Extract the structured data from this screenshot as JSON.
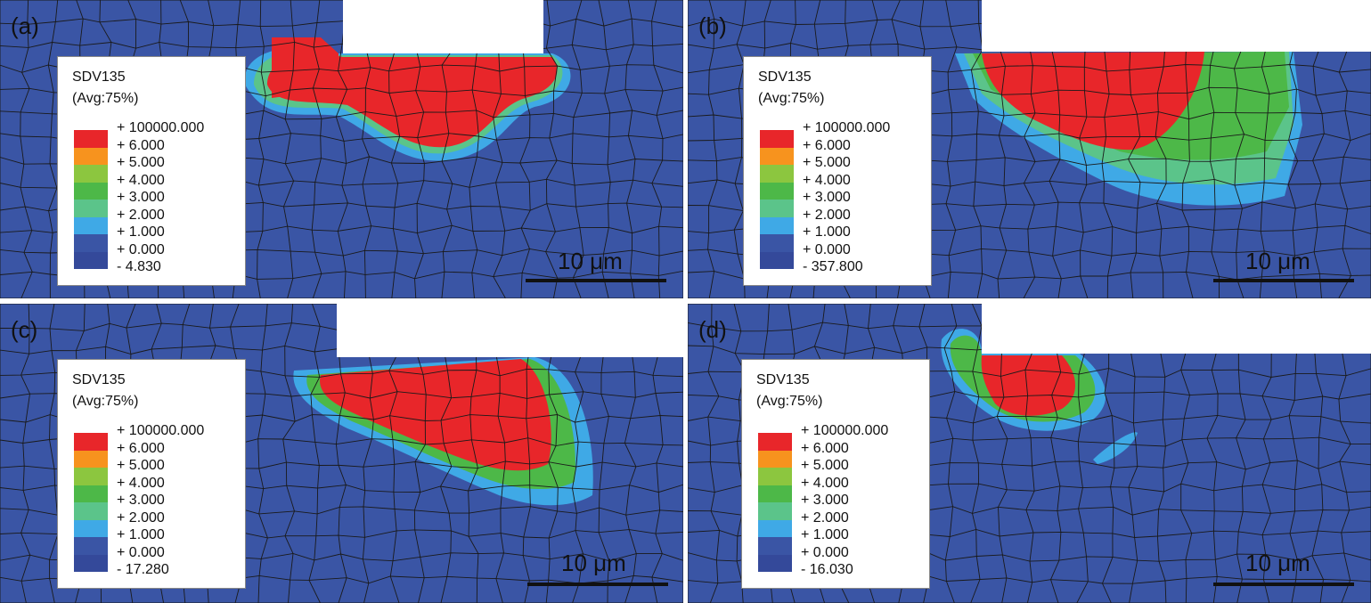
{
  "colors": {
    "mesh_blue": "#3a55a5",
    "red": "#e8262a",
    "orange": "#f7931e",
    "yellow_green": "#8cc63f",
    "green": "#4db848",
    "teal_green": "#5bc48a",
    "light_blue": "#3fa9e6",
    "blue": "#3a55a5",
    "dark_blue": "#34499a",
    "mesh_line": "#1a1a1a"
  },
  "legend_colors": [
    "#e8262a",
    "#f7931e",
    "#8cc63f",
    "#4db848",
    "#5bc48a",
    "#3fa9e6",
    "#3a55a5",
    "#34499a"
  ],
  "panels": [
    {
      "label": "(a)",
      "legend": {
        "variable": "SDV135",
        "averaging": "(Avg:75%)",
        "ticks": [
          "+ 100000.000",
          "+ 6.000",
          "+ 5.000",
          "+ 4.000",
          "+ 3.000",
          "+ 2.000",
          "+ 1.000",
          "+ 0.000",
          "- 4.830"
        ]
      },
      "scale_bar": "10 μm"
    },
    {
      "label": "(b)",
      "legend": {
        "variable": "SDV135",
        "averaging": "(Avg:75%)",
        "ticks": [
          "+ 100000.000",
          "+ 6.000",
          "+ 5.000",
          "+ 4.000",
          "+ 3.000",
          "+ 2.000",
          "+ 1.000",
          "+ 0.000",
          "- 357.800"
        ]
      },
      "scale_bar": "10 μm"
    },
    {
      "label": "(c)",
      "legend": {
        "variable": "SDV135",
        "averaging": "(Avg:75%)",
        "ticks": [
          "+ 100000.000",
          "+ 6.000",
          "+ 5.000",
          "+ 4.000",
          "+ 3.000",
          "+ 2.000",
          "+ 1.000",
          "+ 0.000",
          "- 17.280"
        ]
      },
      "scale_bar": "10 μm"
    },
    {
      "label": "(d)",
      "legend": {
        "variable": "SDV135",
        "averaging": "(Avg:75%)",
        "ticks": [
          "+ 100000.000",
          "+ 6.000",
          "+ 5.000",
          "+ 4.000",
          "+ 3.000",
          "+ 2.000",
          "+ 1.000",
          "+ 0.000",
          "- 16.030"
        ]
      },
      "scale_bar": "10 μm"
    }
  ]
}
